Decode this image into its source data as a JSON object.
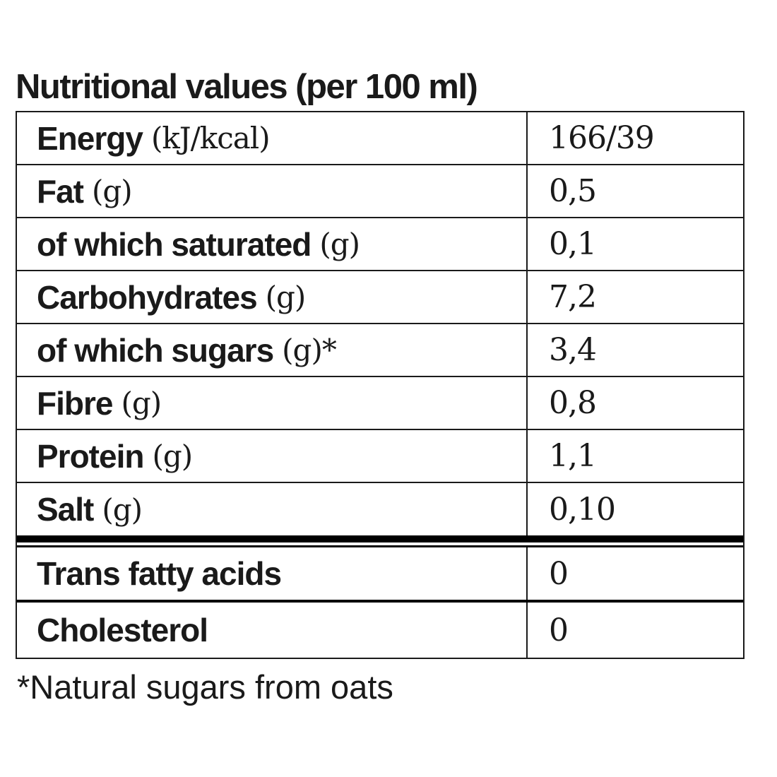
{
  "title": "Nutritional values (per 100 ml)",
  "rows": [
    {
      "label": "Energy",
      "unit": "(kJ/kcal)",
      "value": "166/39"
    },
    {
      "label": "Fat",
      "unit": "(g)",
      "value": "0,5"
    },
    {
      "label": "of which saturated",
      "unit": "(g)",
      "value": "0,1"
    },
    {
      "label": "Carbohydrates",
      "unit": "(g)",
      "value": "7,2"
    },
    {
      "label": "of which sugars",
      "unit": "(g)*",
      "value": "3,4"
    },
    {
      "label": "Fibre",
      "unit": "(g)",
      "value": "0,8"
    },
    {
      "label": "Protein",
      "unit": "(g)",
      "value": "1,1"
    },
    {
      "label": "Salt",
      "unit": "(g)",
      "value": "0,10"
    }
  ],
  "extra_rows": [
    {
      "label": "Trans fatty acids",
      "value": "0"
    },
    {
      "label": "Cholesterol",
      "value": "0"
    }
  ],
  "footnote": "*Natural sugars from oats"
}
